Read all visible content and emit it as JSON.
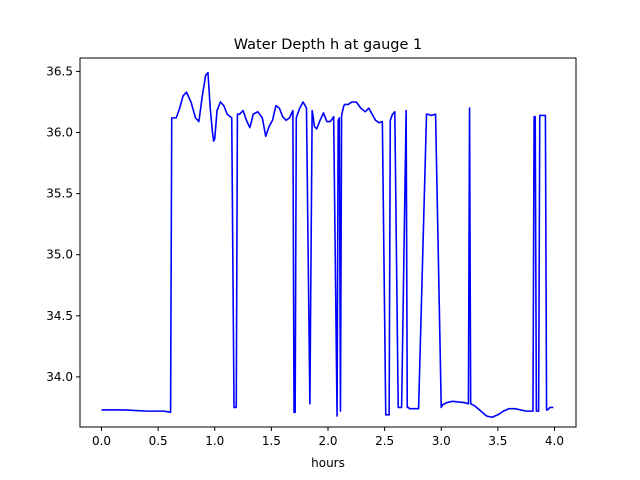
{
  "chart_data": {
    "type": "line",
    "title": "Water Depth h at gauge 1",
    "xlabel": "hours",
    "ylabel": "",
    "xlim": [
      -0.19,
      4.19
    ],
    "ylim": [
      33.59,
      36.61
    ],
    "xticks": [
      0.0,
      0.5,
      1.0,
      1.5,
      2.0,
      2.5,
      3.0,
      3.5,
      4.0
    ],
    "xtick_labels": [
      "0.0",
      "0.5",
      "1.0",
      "1.5",
      "2.0",
      "2.5",
      "3.0",
      "3.5",
      "4.0"
    ],
    "yticks": [
      34.0,
      34.5,
      35.0,
      35.5,
      36.0,
      36.5
    ],
    "ytick_labels": [
      "34.0",
      "34.5",
      "35.0",
      "35.5",
      "36.0",
      "36.5"
    ],
    "grid": false,
    "series": [
      {
        "color": "#0000ff",
        "x": [
          0.0,
          0.2,
          0.4,
          0.55,
          0.61,
          0.62,
          0.63,
          0.66,
          0.69,
          0.72,
          0.75,
          0.79,
          0.83,
          0.86,
          0.89,
          0.92,
          0.94,
          0.96,
          0.98,
          0.99,
          1.0,
          1.02,
          1.05,
          1.08,
          1.11,
          1.15,
          1.17,
          1.19,
          1.2,
          1.21,
          1.22,
          1.25,
          1.28,
          1.31,
          1.34,
          1.38,
          1.42,
          1.45,
          1.48,
          1.51,
          1.54,
          1.57,
          1.6,
          1.63,
          1.66,
          1.69,
          1.7,
          1.71,
          1.72,
          1.75,
          1.78,
          1.81,
          1.84,
          1.86,
          1.87,
          1.88,
          1.9,
          1.93,
          1.96,
          1.99,
          2.02,
          2.05,
          2.08,
          2.09,
          2.1,
          2.11,
          2.12,
          2.13,
          2.14,
          2.15,
          2.18,
          2.21,
          2.25,
          2.29,
          2.33,
          2.36,
          2.39,
          2.42,
          2.45,
          2.48,
          2.51,
          2.54,
          2.55,
          2.57,
          2.58,
          2.59,
          2.62,
          2.65,
          2.69,
          2.7,
          2.71,
          2.72,
          2.8,
          2.87,
          2.88,
          2.91,
          2.95,
          3.0,
          3.01,
          3.05,
          3.1,
          3.2,
          3.24,
          3.25,
          3.26,
          3.3,
          3.35,
          3.4,
          3.45,
          3.5,
          3.55,
          3.6,
          3.65,
          3.7,
          3.75,
          3.81,
          3.82,
          3.83,
          3.84,
          3.86,
          3.87,
          3.88,
          3.92,
          3.93,
          3.94,
          3.95,
          3.96,
          3.99
        ],
        "y": [
          33.73,
          33.73,
          33.72,
          33.72,
          33.71,
          36.12,
          36.12,
          36.12,
          36.2,
          36.3,
          36.33,
          36.25,
          36.12,
          36.09,
          36.3,
          36.47,
          36.49,
          36.2,
          36.0,
          35.93,
          35.95,
          36.18,
          36.25,
          36.22,
          36.15,
          36.12,
          33.75,
          33.75,
          36.15,
          36.15,
          36.15,
          36.18,
          36.1,
          36.04,
          36.15,
          36.17,
          36.12,
          35.97,
          36.05,
          36.1,
          36.22,
          36.2,
          36.13,
          36.1,
          36.12,
          36.18,
          33.71,
          33.71,
          36.12,
          36.2,
          36.25,
          36.2,
          33.78,
          36.18,
          36.12,
          36.05,
          36.03,
          36.1,
          36.16,
          36.09,
          36.09,
          36.13,
          33.68,
          36.1,
          36.12,
          33.72,
          36.14,
          36.18,
          36.22,
          36.23,
          36.23,
          36.25,
          36.25,
          36.2,
          36.17,
          36.2,
          36.15,
          36.1,
          36.08,
          36.09,
          33.69,
          33.69,
          36.1,
          36.15,
          36.16,
          36.17,
          33.75,
          33.75,
          36.18,
          33.75,
          33.75,
          33.74,
          33.74,
          36.15,
          36.15,
          36.14,
          36.15,
          33.75,
          33.77,
          33.79,
          33.8,
          33.79,
          33.78,
          36.2,
          33.78,
          33.76,
          33.72,
          33.68,
          33.67,
          33.69,
          33.72,
          33.74,
          33.74,
          33.73,
          33.72,
          33.72,
          36.13,
          36.13,
          33.72,
          33.72,
          36.14,
          36.14,
          36.14,
          33.73,
          33.73,
          33.74,
          33.75,
          33.75
        ]
      }
    ]
  }
}
